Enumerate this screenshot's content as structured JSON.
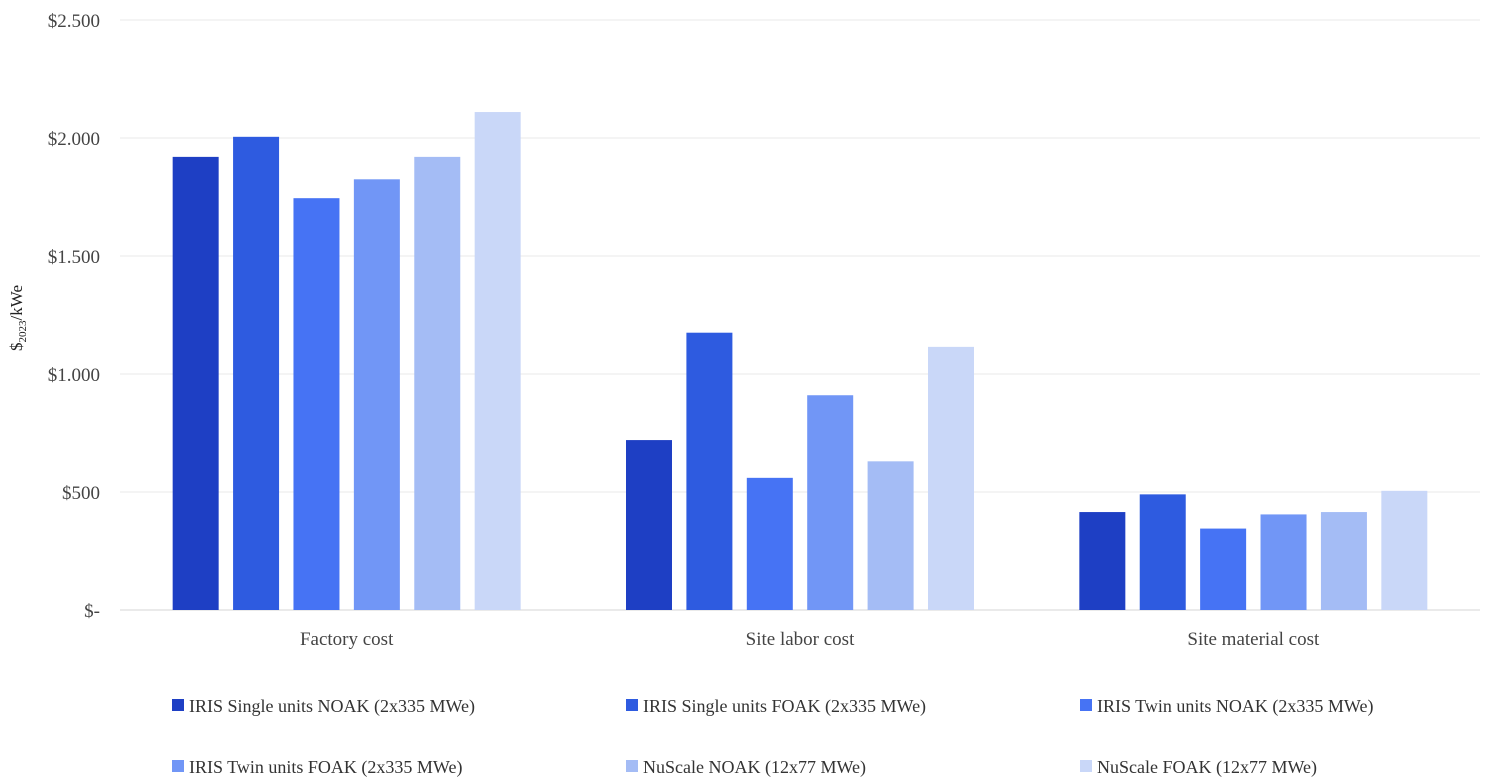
{
  "chart_data": {
    "type": "bar",
    "title": "",
    "xlabel": "",
    "ylabel_main": "$",
    "ylabel_sub": "2023",
    "ylabel_tail": "/kWe",
    "ylim": [
      0,
      2500
    ],
    "yticks": [
      0,
      500,
      1000,
      1500,
      2000,
      2500
    ],
    "ytick_labels": [
      "$-",
      "$500",
      "$1.000",
      "$1.500",
      "$2.000",
      "$2.500"
    ],
    "categories": [
      "Factory cost",
      "Site labor cost",
      "Site material cost"
    ],
    "series": [
      {
        "name": "IRIS Single units NOAK (2x335 MWe)",
        "color": "#1e3fc4",
        "values": [
          1920,
          720,
          415
        ]
      },
      {
        "name": "IRIS Single units FOAK (2x335 MWe)",
        "color": "#2e5be0",
        "values": [
          2005,
          1175,
          490
        ]
      },
      {
        "name": "IRIS Twin units NOAK (2x335 MWe)",
        "color": "#4673f4",
        "values": [
          1745,
          560,
          345
        ]
      },
      {
        "name": "IRIS Twin units FOAK (2x335 MWe)",
        "color": "#7196f6",
        "values": [
          1825,
          910,
          405
        ]
      },
      {
        "name": "NuScale NOAK (12x77 MWe)",
        "color": "#a4bcf5",
        "values": [
          1920,
          630,
          415
        ]
      },
      {
        "name": "NuScale FOAK (12x77 MWe)",
        "color": "#c9d7f8",
        "values": [
          2110,
          1115,
          505
        ]
      }
    ],
    "legend_position": "bottom",
    "grid": true
  }
}
